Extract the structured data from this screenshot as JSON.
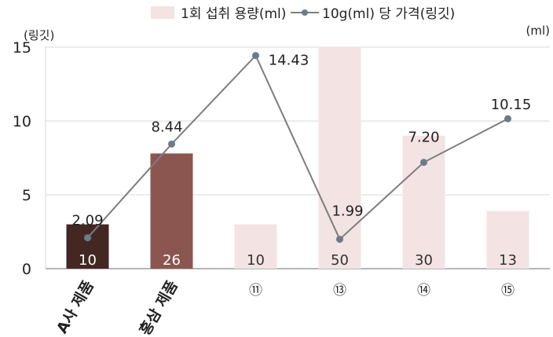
{
  "chart_data": {
    "type": "bar+line",
    "categories": [
      "A사 제품",
      "홍삼 제품",
      "⑪",
      "⑬",
      "⑭",
      "⑮"
    ],
    "series": [
      {
        "name": "1회 섭취 용량(ml)",
        "type": "bar",
        "axis": "right",
        "values": [
          10,
          26,
          10,
          50,
          30,
          13
        ],
        "data_labels": [
          "10",
          "26",
          "10",
          "50",
          "30",
          "13"
        ],
        "colors": [
          "#432723",
          "#8b5650",
          "#f3e3e3",
          "#f3e3e3",
          "#f3e3e3",
          "#f3e3e3"
        ]
      },
      {
        "name": "10g(ml) 당 가격(링깃)",
        "type": "line",
        "axis": "left",
        "values": [
          2.09,
          8.44,
          14.43,
          1.99,
          7.2,
          10.15
        ],
        "data_labels": [
          "2.09",
          "8.44",
          "14.43",
          "1.99",
          "7.20",
          "10.15"
        ],
        "color": "#7d7d7d",
        "marker_color": "#6d7b88"
      }
    ],
    "y_left": {
      "unit_label": "(링깃)",
      "range": [
        0,
        15
      ],
      "ticks": [
        "0",
        "5",
        "10",
        "15"
      ]
    },
    "y_right": {
      "unit_label": "(ml)",
      "range": [
        0,
        50
      ]
    },
    "grid": true,
    "legend_position": "top"
  }
}
